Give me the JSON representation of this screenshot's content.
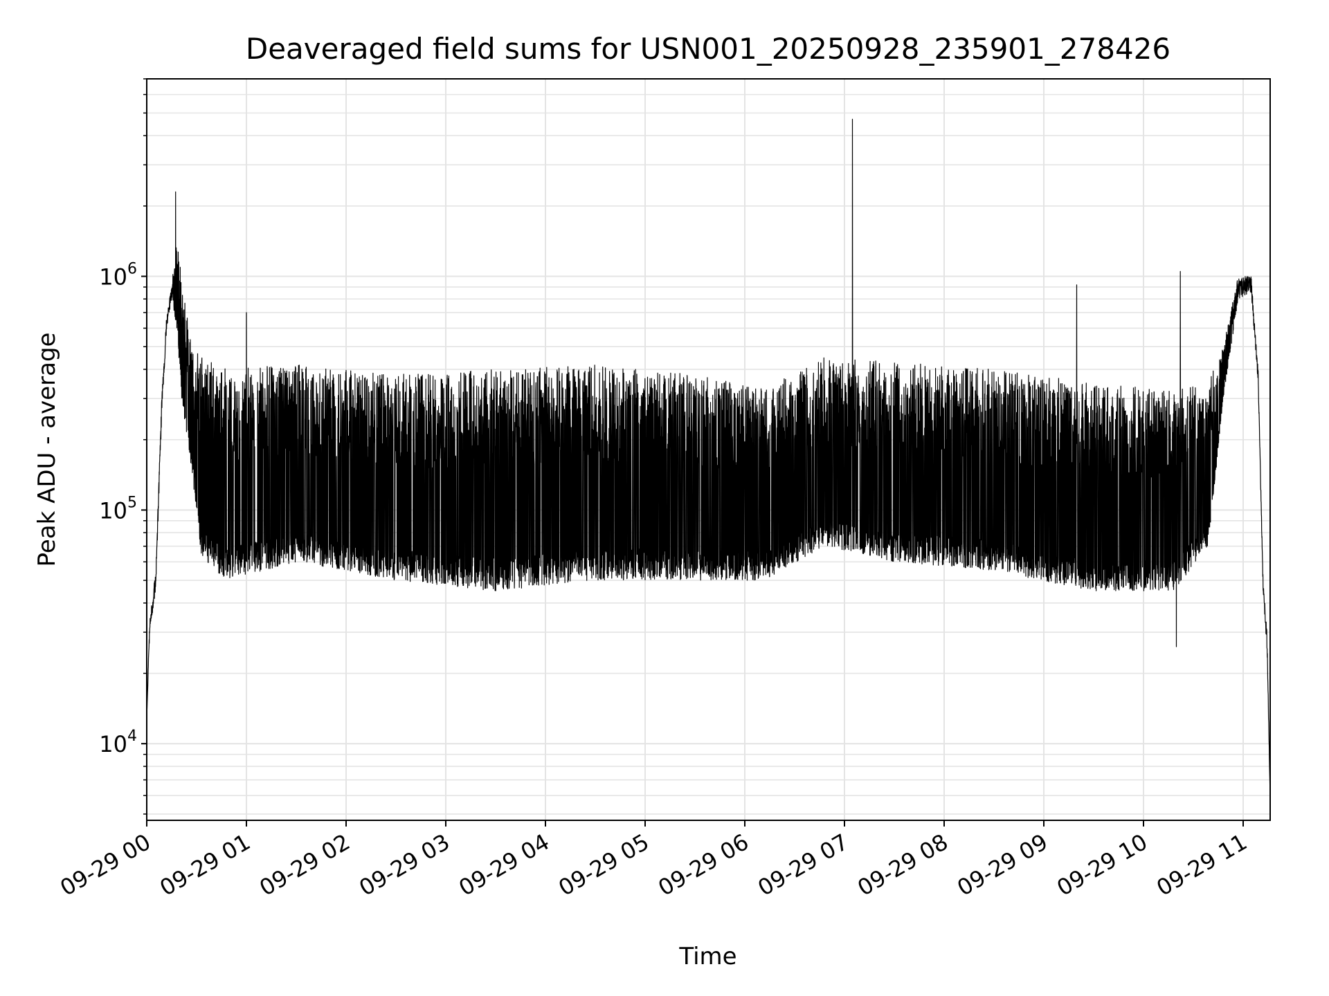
{
  "chart_data": {
    "type": "line",
    "title": "Deaveraged field sums for USN001_20250928_235901_278426",
    "xlabel": "Time",
    "ylabel": "Peak ADU - average",
    "yscale": "log",
    "ylim": [
      4700,
      7000000
    ],
    "xlim_hours": [
      0.0,
      11.0
    ],
    "grid": true,
    "line_color": "#000000",
    "grid_color": "#e4e4e4",
    "x_ticks": [
      {
        "hour": 0,
        "label": "09-29 00"
      },
      {
        "hour": 1,
        "label": "09-29 01"
      },
      {
        "hour": 2,
        "label": "09-29 02"
      },
      {
        "hour": 3,
        "label": "09-29 03"
      },
      {
        "hour": 4,
        "label": "09-29 04"
      },
      {
        "hour": 5,
        "label": "09-29 05"
      },
      {
        "hour": 6,
        "label": "09-29 06"
      },
      {
        "hour": 7,
        "label": "09-29 07"
      },
      {
        "hour": 8,
        "label": "09-29 08"
      },
      {
        "hour": 9,
        "label": "09-29 09"
      },
      {
        "hour": 10,
        "label": "09-29 10"
      },
      {
        "hour": 11,
        "label": "09-29 11"
      }
    ],
    "y_ticks": [
      {
        "value": 10000,
        "base": "10",
        "exp": "4"
      },
      {
        "value": 100000,
        "base": "10",
        "exp": "5"
      },
      {
        "value": 1000000,
        "base": "10",
        "exp": "6"
      }
    ],
    "series": [
      {
        "name": "field sums",
        "noise_seed": 278426,
        "envelope": [
          {
            "hour": 0.0,
            "high": 13000,
            "low": 13000
          },
          {
            "hour": 0.03,
            "high": 35000,
            "low": 30000
          },
          {
            "hour": 0.09,
            "high": 55000,
            "low": 45000
          },
          {
            "hour": 0.15,
            "high": 300000,
            "low": 250000
          },
          {
            "hour": 0.2,
            "high": 700000,
            "low": 600000
          },
          {
            "hour": 0.25,
            "high": 900000,
            "low": 800000
          },
          {
            "hour": 0.3,
            "high": 1500000,
            "low": 600000
          },
          {
            "hour": 0.35,
            "high": 1000000,
            "low": 300000
          },
          {
            "hour": 0.45,
            "high": 500000,
            "low": 150000
          },
          {
            "hour": 0.55,
            "high": 450000,
            "low": 60000
          },
          {
            "hour": 0.8,
            "high": 400000,
            "low": 50000
          },
          {
            "hour": 1.5,
            "high": 420000,
            "low": 60000
          },
          {
            "hour": 2.5,
            "high": 380000,
            "low": 50000
          },
          {
            "hour": 3.5,
            "high": 400000,
            "low": 45000
          },
          {
            "hour": 4.5,
            "high": 420000,
            "low": 50000
          },
          {
            "hour": 5.5,
            "high": 380000,
            "low": 50000
          },
          {
            "hour": 6.2,
            "high": 330000,
            "low": 50000
          },
          {
            "hour": 6.8,
            "high": 450000,
            "low": 70000
          },
          {
            "hour": 7.5,
            "high": 430000,
            "low": 60000
          },
          {
            "hour": 8.5,
            "high": 400000,
            "low": 55000
          },
          {
            "hour": 9.5,
            "high": 350000,
            "low": 45000
          },
          {
            "hour": 10.3,
            "high": 330000,
            "low": 45000
          },
          {
            "hour": 10.65,
            "high": 350000,
            "low": 70000
          },
          {
            "hour": 10.8,
            "high": 500000,
            "low": 300000
          },
          {
            "hour": 10.95,
            "high": 1000000,
            "low": 800000
          },
          {
            "hour": 11.08,
            "high": 1000000,
            "low": 850000
          },
          {
            "hour": 11.15,
            "high": 400000,
            "low": 350000
          },
          {
            "hour": 11.2,
            "high": 50000,
            "low": 45000
          },
          {
            "hour": 11.24,
            "high": 30000,
            "low": 25000
          },
          {
            "hour": 11.27,
            "high": 6000,
            "low": 6000
          }
        ],
        "spikes": [
          {
            "hour": 0.29,
            "value": 2300000
          },
          {
            "hour": 1.0,
            "value": 700000
          },
          {
            "hour": 7.08,
            "value": 4700000
          },
          {
            "hour": 9.33,
            "value": 920000
          },
          {
            "hour": 10.37,
            "value": 1050000
          },
          {
            "hour": 10.33,
            "value": 26000
          }
        ]
      }
    ]
  }
}
